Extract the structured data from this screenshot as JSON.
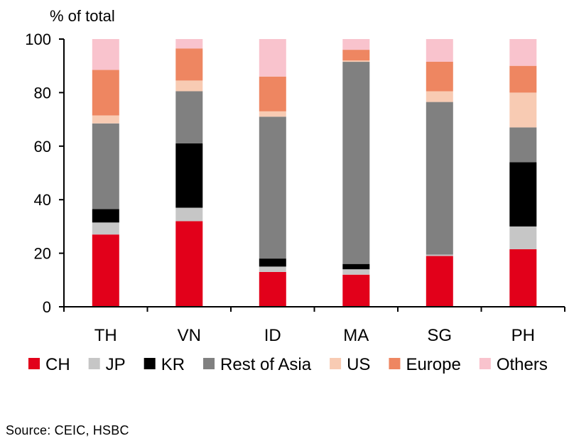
{
  "chart_data": {
    "type": "bar",
    "stacked": true,
    "ylabel": "% of total",
    "ylim": [
      0,
      100
    ],
    "yticks": [
      "0",
      "20",
      "40",
      "60",
      "80",
      "100"
    ],
    "grid": false,
    "legend_position": "bottom",
    "categories": [
      "TH",
      "VN",
      "ID",
      "MA",
      "SG",
      "PH"
    ],
    "series": [
      {
        "name": "CH",
        "color": "#e2001a",
        "values": [
          27,
          32,
          13,
          12,
          19,
          21.5
        ]
      },
      {
        "name": "JP",
        "color": "#c6c6c6",
        "values": [
          4.5,
          5,
          2,
          2,
          0.5,
          8.5
        ]
      },
      {
        "name": "KR",
        "color": "#000000",
        "values": [
          5,
          24,
          3,
          2,
          0,
          24
        ]
      },
      {
        "name": "Rest of Asia",
        "color": "#808080",
        "values": [
          32,
          19.5,
          53,
          75.5,
          57,
          13
        ]
      },
      {
        "name": "US",
        "color": "#f8cbb3",
        "values": [
          3,
          4,
          2,
          0.5,
          4,
          13
        ]
      },
      {
        "name": "Europe",
        "color": "#ee8661",
        "values": [
          17,
          12,
          13,
          4,
          11,
          10
        ]
      },
      {
        "name": "Others",
        "color": "#f9c3cd",
        "values": [
          11.5,
          3.5,
          14,
          4,
          8.5,
          10
        ]
      }
    ]
  },
  "footer": {
    "source": "Source:  CEIC, HSBC"
  }
}
